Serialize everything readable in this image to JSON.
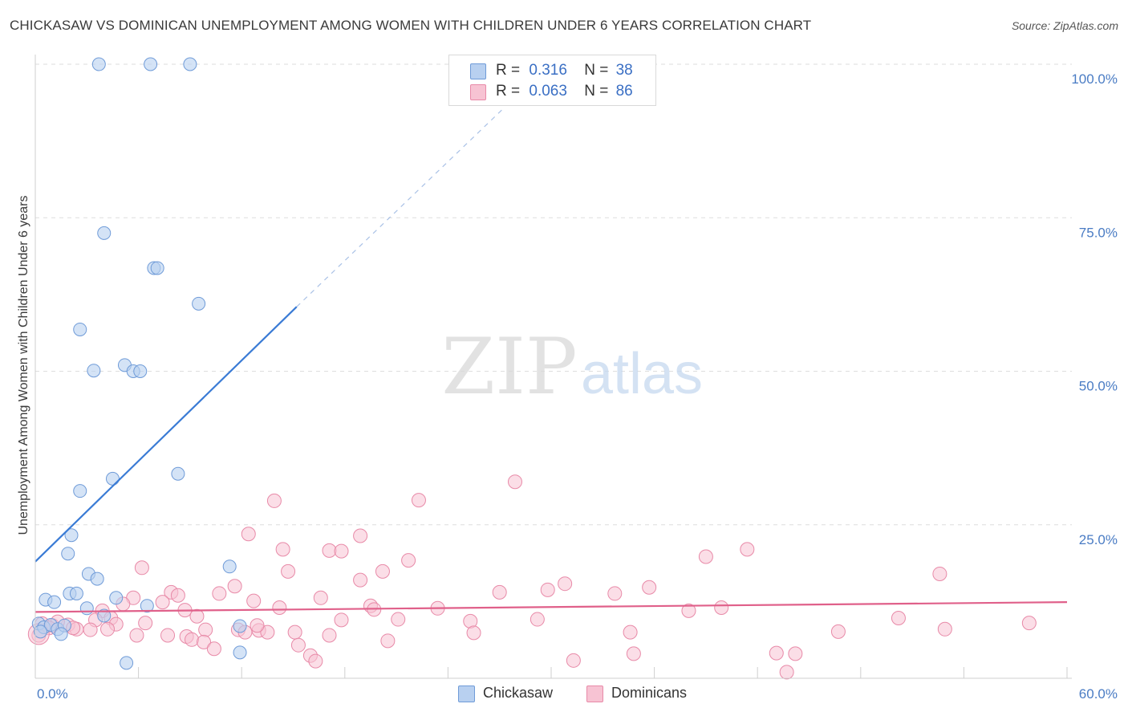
{
  "title": "CHICKASAW VS DOMINICAN UNEMPLOYMENT AMONG WOMEN WITH CHILDREN UNDER 6 YEARS CORRELATION CHART",
  "source": "Source: ZipAtlas.com",
  "watermark": {
    "zip": "ZIP",
    "atlas": "atlas"
  },
  "colors": {
    "chickasaw_fill": "#b8d0f0",
    "chickasaw_stroke": "#6f9bd8",
    "chickasaw_line": "#3a7bd5",
    "dominican_fill": "#f7c3d3",
    "dominican_stroke": "#e88aa8",
    "dominican_line": "#e0608a",
    "tick_text": "#4a7cc4",
    "grid": "#dedede"
  },
  "legend": {
    "rows": [
      {
        "r_label": "R =",
        "r_value": "0.316",
        "n_label": "N =",
        "n_value": "38"
      },
      {
        "r_label": "R =",
        "r_value": "0.063",
        "n_label": "N =",
        "n_value": "86"
      }
    ]
  },
  "bottom_legend": {
    "chickasaw": "Chickasaw",
    "dominicans": "Dominicans"
  },
  "chart_data": {
    "type": "scatter",
    "title": "CHICKASAW VS DOMINICAN UNEMPLOYMENT AMONG WOMEN WITH CHILDREN UNDER 6 YEARS CORRELATION CHART",
    "xlabel": "",
    "ylabel": "Unemployment Among Women with Children Under 6 years",
    "xlim": [
      0,
      60
    ],
    "ylim": [
      0,
      100
    ],
    "x_tick_labels": [
      "0.0%",
      "60.0%"
    ],
    "y_ticks": [
      25,
      50,
      75,
      100
    ],
    "y_tick_labels": [
      "25.0%",
      "50.0%",
      "75.0%",
      "100.0%"
    ],
    "grid": true,
    "series": [
      {
        "name": "Chickasaw",
        "r": 0.316,
        "n": 38,
        "trend": {
          "x": [
            0,
            15.2
          ],
          "y": [
            19,
            60.5
          ],
          "dashed_to": {
            "x": 27.3,
            "y": 93
          }
        },
        "points": [
          [
            3.7,
            100
          ],
          [
            6.7,
            100
          ],
          [
            9.0,
            100
          ],
          [
            4.0,
            72.5
          ],
          [
            6.9,
            66.8
          ],
          [
            7.1,
            66.8
          ],
          [
            9.5,
            61
          ],
          [
            2.6,
            56.8
          ],
          [
            3.4,
            50.1
          ],
          [
            5.2,
            51
          ],
          [
            5.7,
            50
          ],
          [
            6.1,
            50
          ],
          [
            2.6,
            30.5
          ],
          [
            4.5,
            32.5
          ],
          [
            8.3,
            33.3
          ],
          [
            2.1,
            23.3
          ],
          [
            1.9,
            20.3
          ],
          [
            11.3,
            18.2
          ],
          [
            3.1,
            17
          ],
          [
            3.6,
            16.2
          ],
          [
            0.6,
            12.8
          ],
          [
            1.1,
            12.4
          ],
          [
            2.0,
            13.8
          ],
          [
            2.4,
            13.8
          ],
          [
            3.0,
            11.4
          ],
          [
            4.7,
            13.1
          ],
          [
            6.5,
            11.8
          ],
          [
            4.0,
            10.2
          ],
          [
            0.2,
            8.9
          ],
          [
            0.5,
            8.3
          ],
          [
            0.9,
            8.7
          ],
          [
            1.3,
            8.0
          ],
          [
            1.7,
            8.6
          ],
          [
            1.5,
            7.2
          ],
          [
            0.3,
            7.6
          ],
          [
            11.9,
            8.5
          ],
          [
            11.9,
            4.2
          ],
          [
            5.3,
            2.5
          ]
        ]
      },
      {
        "name": "Dominicans",
        "r": 0.063,
        "n": 86,
        "trend": {
          "x": [
            0,
            60
          ],
          "y": [
            10.8,
            12.4
          ]
        },
        "points": [
          [
            27.9,
            32
          ],
          [
            13.9,
            28.9
          ],
          [
            22.3,
            29
          ],
          [
            12.4,
            23.5
          ],
          [
            18.9,
            23.2
          ],
          [
            14.4,
            21
          ],
          [
            17.1,
            20.8
          ],
          [
            17.8,
            20.7
          ],
          [
            21.7,
            19.2
          ],
          [
            39.0,
            19.8
          ],
          [
            41.4,
            21
          ],
          [
            6.2,
            18
          ],
          [
            14.7,
            17.4
          ],
          [
            20.2,
            17.4
          ],
          [
            52.6,
            17
          ],
          [
            18.9,
            16
          ],
          [
            11.6,
            15
          ],
          [
            30.8,
            15.4
          ],
          [
            35.7,
            14.8
          ],
          [
            27.0,
            14
          ],
          [
            29.8,
            14.4
          ],
          [
            33.7,
            13.8
          ],
          [
            7.9,
            14
          ],
          [
            8.3,
            13.5
          ],
          [
            10.7,
            13.8
          ],
          [
            16.6,
            13.1
          ],
          [
            5.7,
            13.1
          ],
          [
            7.4,
            12.4
          ],
          [
            12.7,
            12.6
          ],
          [
            5.1,
            12.1
          ],
          [
            19.5,
            11.8
          ],
          [
            19.7,
            11.2
          ],
          [
            23.4,
            11.4
          ],
          [
            14.2,
            11.5
          ],
          [
            8.7,
            11.1
          ],
          [
            3.9,
            11
          ],
          [
            39.9,
            11.5
          ],
          [
            38.0,
            11
          ],
          [
            9.4,
            10.1
          ],
          [
            4.4,
            9.8
          ],
          [
            3.5,
            9.5
          ],
          [
            17.8,
            9.5
          ],
          [
            21.1,
            9.6
          ],
          [
            25.3,
            9.3
          ],
          [
            29.2,
            9.6
          ],
          [
            50.2,
            9.8
          ],
          [
            57.8,
            9
          ],
          [
            4.7,
            8.8
          ],
          [
            0.4,
            8.9
          ],
          [
            1.0,
            8.6
          ],
          [
            1.9,
            8.7
          ],
          [
            2.4,
            8.0
          ],
          [
            4.2,
            8.0
          ],
          [
            9.9,
            7.9
          ],
          [
            11.8,
            7.9
          ],
          [
            13.0,
            7.8
          ],
          [
            13.5,
            7.5
          ],
          [
            15.1,
            7.5
          ],
          [
            25.5,
            7.4
          ],
          [
            34.6,
            7.5
          ],
          [
            46.7,
            7.6
          ],
          [
            52.9,
            8
          ],
          [
            0.2,
            7.0
          ],
          [
            5.9,
            7.0
          ],
          [
            7.7,
            7.0
          ],
          [
            8.8,
            6.8
          ],
          [
            17.1,
            7.0
          ],
          [
            9.1,
            6.3
          ],
          [
            9.8,
            5.9
          ],
          [
            12.2,
            7.5
          ],
          [
            15.3,
            5.4
          ],
          [
            20.5,
            6.1
          ],
          [
            10.4,
            4.8
          ],
          [
            16.0,
            3.7
          ],
          [
            16.3,
            2.8
          ],
          [
            31.3,
            2.9
          ],
          [
            34.8,
            4.0
          ],
          [
            43.1,
            4.1
          ],
          [
            44.2,
            4.0
          ],
          [
            43.7,
            1.0
          ],
          [
            2.2,
            8.2
          ],
          [
            3.2,
            7.9
          ],
          [
            1.3,
            9.2
          ],
          [
            0.8,
            8.2
          ],
          [
            6.4,
            9.0
          ],
          [
            12.9,
            8.6
          ]
        ]
      }
    ]
  }
}
